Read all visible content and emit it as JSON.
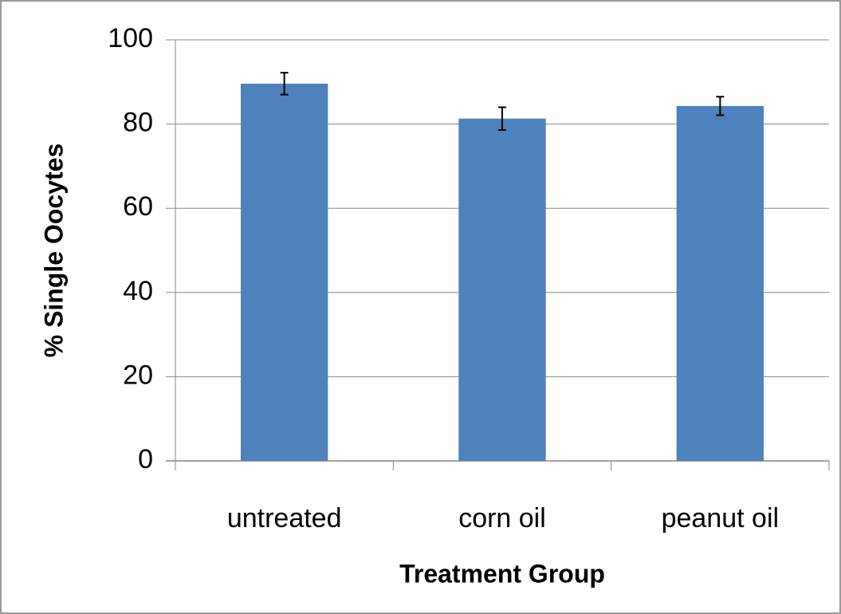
{
  "chart_data": {
    "type": "bar",
    "xlabel": "Treatment Group",
    "ylabel": "% Single Oocytes",
    "categories": [
      "untreated",
      "corn oil",
      "peanut oil"
    ],
    "values": [
      89.6,
      81.3,
      84.3
    ],
    "errors": [
      2.6,
      2.7,
      2.2
    ],
    "color": "#4f81bd",
    "ylim": [
      0,
      100
    ],
    "yticks": [
      0,
      20,
      40,
      60,
      80,
      100
    ],
    "grid": true
  }
}
